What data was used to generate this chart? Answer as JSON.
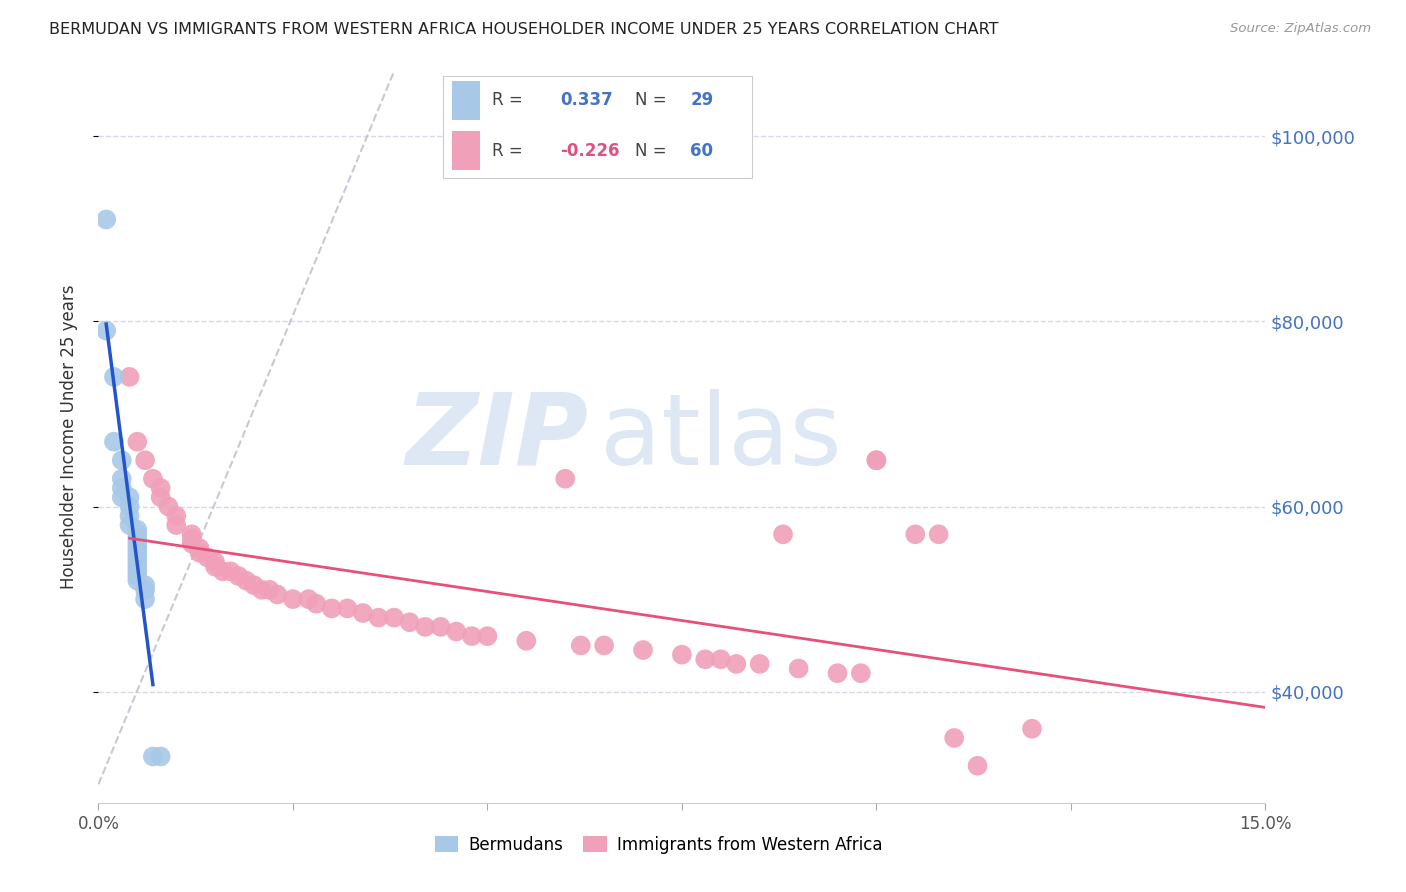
{
  "title": "BERMUDAN VS IMMIGRANTS FROM WESTERN AFRICA HOUSEHOLDER INCOME UNDER 25 YEARS CORRELATION CHART",
  "source": "Source: ZipAtlas.com",
  "ylabel": "Householder Income Under 25 years",
  "xlim": [
    0.0,
    0.15
  ],
  "ylim": [
    28000,
    107000
  ],
  "yticks": [
    40000,
    60000,
    80000,
    100000
  ],
  "ytick_labels": [
    "$40,000",
    "$60,000",
    "$80,000",
    "$100,000"
  ],
  "xtick_positions": [
    0.0,
    0.025,
    0.05,
    0.075,
    0.1,
    0.125,
    0.15
  ],
  "legend1_r": "0.337",
  "legend1_n": "29",
  "legend2_r": "-0.226",
  "legend2_n": "60",
  "blue_color": "#a8c8e8",
  "pink_color": "#f0a0b8",
  "blue_line_color": "#2255cc",
  "pink_line_color": "#e8507a",
  "diag_line_color": "#bbbbcc",
  "blue_scatter": [
    [
      0.001,
      91000
    ],
    [
      0.001,
      79000
    ],
    [
      0.002,
      74000
    ],
    [
      0.002,
      67000
    ],
    [
      0.003,
      65000
    ],
    [
      0.003,
      63000
    ],
    [
      0.003,
      62000
    ],
    [
      0.003,
      61000
    ],
    [
      0.004,
      61000
    ],
    [
      0.004,
      60000
    ],
    [
      0.004,
      59000
    ],
    [
      0.004,
      58000
    ],
    [
      0.005,
      57500
    ],
    [
      0.005,
      57000
    ],
    [
      0.005,
      56500
    ],
    [
      0.005,
      56000
    ],
    [
      0.005,
      55500
    ],
    [
      0.005,
      55000
    ],
    [
      0.005,
      54500
    ],
    [
      0.005,
      54000
    ],
    [
      0.005,
      53500
    ],
    [
      0.005,
      53000
    ],
    [
      0.005,
      52500
    ],
    [
      0.005,
      52000
    ],
    [
      0.006,
      51500
    ],
    [
      0.006,
      51000
    ],
    [
      0.006,
      50000
    ],
    [
      0.007,
      33000
    ],
    [
      0.008,
      33000
    ]
  ],
  "pink_scatter": [
    [
      0.004,
      74000
    ],
    [
      0.005,
      67000
    ],
    [
      0.006,
      65000
    ],
    [
      0.007,
      63000
    ],
    [
      0.008,
      62000
    ],
    [
      0.008,
      61000
    ],
    [
      0.009,
      60000
    ],
    [
      0.01,
      59000
    ],
    [
      0.01,
      58000
    ],
    [
      0.012,
      57000
    ],
    [
      0.012,
      56500
    ],
    [
      0.012,
      56000
    ],
    [
      0.013,
      55500
    ],
    [
      0.013,
      55000
    ],
    [
      0.014,
      54500
    ],
    [
      0.015,
      54000
    ],
    [
      0.015,
      53500
    ],
    [
      0.016,
      53000
    ],
    [
      0.017,
      53000
    ],
    [
      0.018,
      52500
    ],
    [
      0.019,
      52000
    ],
    [
      0.02,
      51500
    ],
    [
      0.021,
      51000
    ],
    [
      0.022,
      51000
    ],
    [
      0.023,
      50500
    ],
    [
      0.025,
      50000
    ],
    [
      0.027,
      50000
    ],
    [
      0.028,
      49500
    ],
    [
      0.03,
      49000
    ],
    [
      0.032,
      49000
    ],
    [
      0.034,
      48500
    ],
    [
      0.036,
      48000
    ],
    [
      0.038,
      48000
    ],
    [
      0.04,
      47500
    ],
    [
      0.042,
      47000
    ],
    [
      0.044,
      47000
    ],
    [
      0.046,
      46500
    ],
    [
      0.048,
      46000
    ],
    [
      0.05,
      46000
    ],
    [
      0.055,
      45500
    ],
    [
      0.06,
      63000
    ],
    [
      0.062,
      45000
    ],
    [
      0.065,
      45000
    ],
    [
      0.07,
      44500
    ],
    [
      0.075,
      44000
    ],
    [
      0.078,
      43500
    ],
    [
      0.08,
      43500
    ],
    [
      0.082,
      43000
    ],
    [
      0.085,
      43000
    ],
    [
      0.088,
      57000
    ],
    [
      0.09,
      42500
    ],
    [
      0.095,
      42000
    ],
    [
      0.098,
      42000
    ],
    [
      0.1,
      65000
    ],
    [
      0.1,
      65000
    ],
    [
      0.105,
      57000
    ],
    [
      0.108,
      57000
    ],
    [
      0.11,
      35000
    ],
    [
      0.113,
      32000
    ],
    [
      0.12,
      36000
    ]
  ],
  "background_color": "#ffffff",
  "grid_color": "#d8d8e8"
}
